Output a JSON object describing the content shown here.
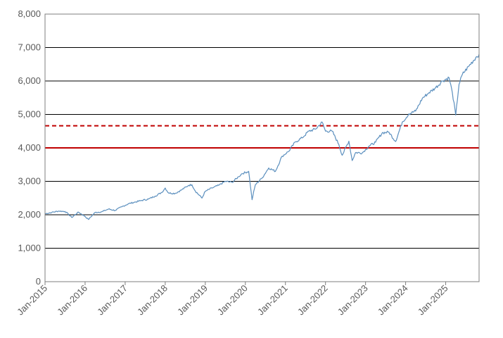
{
  "chart_data": {
    "type": "line",
    "title": "",
    "xlabel": "",
    "ylabel": "",
    "ylim": [
      0,
      8000
    ],
    "yticks": [
      0,
      1000,
      2000,
      3000,
      4000,
      5000,
      6000,
      7000,
      8000
    ],
    "ytick_labels": [
      "0",
      "1,000",
      "2,000",
      "3,000",
      "4,000",
      "5,000",
      "6,000",
      "7,000",
      "8,000"
    ],
    "xlim": [
      "2015-01",
      "2025-11"
    ],
    "xtick_labels": [
      "Jan-2015",
      "Jan-2016",
      "Jan-2017",
      "Jan-2018",
      "Jan-2019",
      "Jan-2020",
      "Jan-2021",
      "Jan-2022",
      "Jan-2023",
      "Jan-2024",
      "Jan-2025"
    ],
    "grid": "horizontal",
    "legend": "none",
    "colors": {
      "series": "#5b8fbe",
      "reference": "#c00000",
      "grid": "#000000"
    },
    "reference_lines": [
      {
        "value": 4000,
        "style": "solid"
      },
      {
        "value": 4660,
        "style": "dashed"
      }
    ],
    "series": [
      {
        "x": [
          "2015-01",
          "2015-03",
          "2015-05",
          "2015-07",
          "2015-08",
          "2015-09",
          "2015-11",
          "2016-01",
          "2016-02",
          "2016-04",
          "2016-06",
          "2016-08",
          "2016-10",
          "2016-12",
          "2017-02",
          "2017-04",
          "2017-06",
          "2017-08",
          "2017-10",
          "2017-12",
          "2018-01",
          "2018-02",
          "2018-04",
          "2018-06",
          "2018-08",
          "2018-09",
          "2018-10",
          "2018-12",
          "2019-01",
          "2019-03",
          "2019-05",
          "2019-07",
          "2019-09",
          "2019-11",
          "2019-12",
          "2020-02",
          "2020-03",
          "2020-04",
          "2020-06",
          "2020-08",
          "2020-10",
          "2020-12",
          "2021-02",
          "2021-04",
          "2021-06",
          "2021-08",
          "2021-10",
          "2021-12",
          "2022-01",
          "2022-03",
          "2022-05",
          "2022-06",
          "2022-08",
          "2022-09",
          "2022-10",
          "2022-12",
          "2023-02",
          "2023-04",
          "2023-06",
          "2023-08",
          "2023-10",
          "2023-12",
          "2024-02",
          "2024-04",
          "2024-06",
          "2024-08",
          "2024-10",
          "2024-12",
          "2025-02",
          "2025-03",
          "2025-04",
          "2025-05",
          "2025-06",
          "2025-08",
          "2025-10",
          "2025-11"
        ],
        "y": [
          2030,
          2070,
          2110,
          2100,
          2020,
          1920,
          2080,
          1950,
          1860,
          2070,
          2090,
          2170,
          2130,
          2240,
          2330,
          2380,
          2430,
          2470,
          2560,
          2670,
          2800,
          2650,
          2640,
          2750,
          2880,
          2900,
          2710,
          2500,
          2700,
          2800,
          2880,
          3000,
          2970,
          3140,
          3230,
          3300,
          2450,
          2900,
          3100,
          3400,
          3300,
          3750,
          3900,
          4180,
          4300,
          4500,
          4560,
          4770,
          4500,
          4500,
          4100,
          3780,
          4200,
          3620,
          3860,
          3850,
          4050,
          4170,
          4450,
          4470,
          4190,
          4770,
          5020,
          5100,
          5480,
          5650,
          5800,
          6000,
          6100,
          5650,
          4980,
          5900,
          6200,
          6450,
          6700,
          6800
        ]
      }
    ]
  }
}
